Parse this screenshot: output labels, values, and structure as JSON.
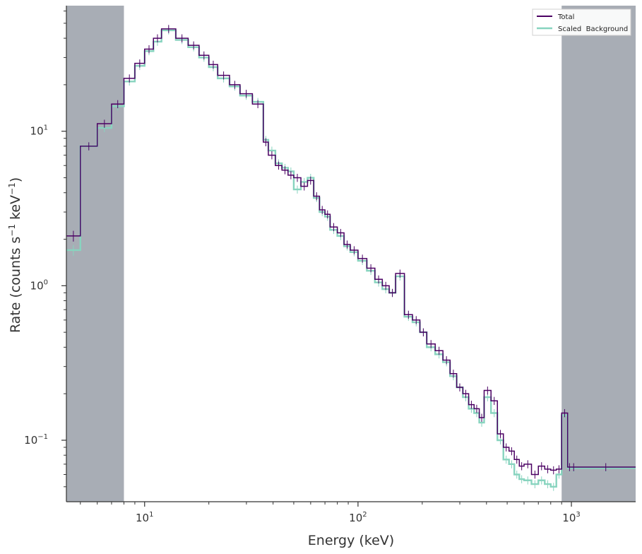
{
  "chart_data": {
    "type": "line",
    "xlabel": "Energy (keV)",
    "ylabel_main": "Rate (counts s",
    "ylabel_sup1": "−1",
    "ylabel_mid": " keV",
    "ylabel_sup2": "−1",
    "ylabel_end": ")",
    "x_scale": "log",
    "y_scale": "log",
    "xlim": [
      4.3,
      2000
    ],
    "ylim": [
      0.04,
      65
    ],
    "x_ticks": [
      {
        "value": 10,
        "base": "10",
        "exp": "1"
      },
      {
        "value": 100,
        "base": "10",
        "exp": "2"
      },
      {
        "value": 1000,
        "base": "10",
        "exp": "3"
      }
    ],
    "y_ticks": [
      {
        "value": 0.1,
        "base": "10",
        "exp": "−1"
      },
      {
        "value": 1,
        "base": "10",
        "exp": "0"
      },
      {
        "value": 10,
        "base": "10",
        "exp": "1"
      }
    ],
    "grid": false,
    "legend_position": "top-right",
    "shaded_regions": [
      {
        "x_from": 4.3,
        "x_to": 8,
        "color": "#a8adb5"
      },
      {
        "x_from": 900,
        "x_to": 2000,
        "color": "#a8adb5"
      }
    ],
    "series": [
      {
        "name": "Total",
        "color": "#4b0063",
        "bin_edges": [
          4.3,
          5,
          6,
          7,
          8,
          9,
          10,
          11,
          12,
          14,
          16,
          18,
          20,
          22,
          25,
          28,
          32,
          36,
          38,
          41,
          44,
          47,
          50,
          54,
          58,
          62,
          66,
          70,
          74,
          80,
          86,
          92,
          100,
          110,
          120,
          130,
          140,
          150,
          165,
          180,
          195,
          210,
          230,
          250,
          270,
          290,
          310,
          330,
          350,
          370,
          390,
          420,
          450,
          480,
          510,
          540,
          570,
          600,
          650,
          700,
          750,
          800,
          850,
          900,
          960,
          1000,
          1050,
          2000
        ],
        "values": [
          2.1,
          8,
          11.2,
          15,
          22,
          27.5,
          34,
          40,
          46,
          40,
          36,
          31,
          27,
          23,
          20,
          17.5,
          15,
          8.5,
          7,
          6,
          5.6,
          5.2,
          5,
          4.4,
          4.8,
          3.8,
          3.1,
          2.9,
          2.4,
          2.2,
          1.85,
          1.7,
          1.5,
          1.3,
          1.1,
          1.0,
          0.9,
          1.2,
          0.65,
          0.6,
          0.5,
          0.42,
          0.38,
          0.33,
          0.27,
          0.22,
          0.2,
          0.17,
          0.16,
          0.14,
          0.21,
          0.18,
          0.11,
          0.09,
          0.085,
          0.075,
          0.068,
          0.07,
          0.06,
          0.068,
          0.065,
          0.064,
          0.065,
          0.15,
          0.067,
          0.067,
          0.067
        ]
      },
      {
        "name": "Scaled  Background",
        "color": "#88d4bf",
        "bin_edges": [
          4.3,
          5,
          6,
          7,
          8,
          9,
          10,
          11,
          12,
          14,
          16,
          18,
          20,
          22,
          25,
          28,
          32,
          36,
          38,
          41,
          44,
          47,
          50,
          54,
          58,
          62,
          66,
          70,
          74,
          80,
          86,
          92,
          100,
          110,
          120,
          130,
          140,
          150,
          165,
          180,
          195,
          210,
          230,
          250,
          270,
          290,
          310,
          330,
          350,
          370,
          390,
          420,
          450,
          480,
          510,
          540,
          570,
          600,
          650,
          700,
          750,
          800,
          850,
          900,
          960,
          1000,
          1050,
          2000
        ],
        "values": [
          1.7,
          8,
          10.5,
          14.5,
          21,
          26.5,
          33,
          38,
          45,
          39,
          35,
          30,
          26,
          22,
          19.5,
          17,
          15.5,
          8.8,
          7.5,
          6.2,
          5.8,
          5.5,
          4.2,
          4.7,
          5,
          3.7,
          3.0,
          2.8,
          2.3,
          2.1,
          1.8,
          1.65,
          1.45,
          1.25,
          1.05,
          0.95,
          0.9,
          1.15,
          0.63,
          0.58,
          0.5,
          0.4,
          0.36,
          0.32,
          0.26,
          0.22,
          0.19,
          0.16,
          0.15,
          0.13,
          0.19,
          0.15,
          0.1,
          0.075,
          0.07,
          0.06,
          0.056,
          0.055,
          0.052,
          0.055,
          0.052,
          0.05,
          0.06,
          0.145,
          0.066,
          0.066,
          0.066
        ]
      }
    ]
  }
}
